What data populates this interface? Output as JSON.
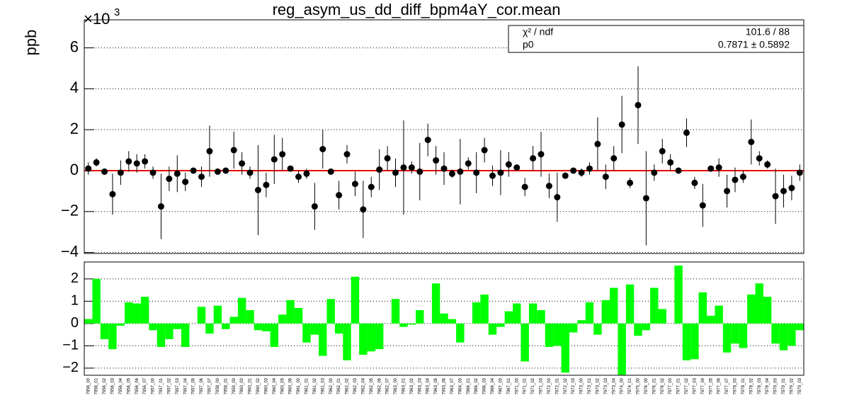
{
  "chart_data": [
    {
      "type": "errorbar",
      "title": "reg_asym_us_dd_diff_bpm4aY_cor.mean",
      "y_label": "ppb",
      "y_scale_label": "×10",
      "y_scale_exponent": "3",
      "color": "#000000",
      "values": [
        100,
        400,
        -50,
        -1150,
        -100,
        450,
        350,
        450,
        -100,
        -1750,
        -400,
        -150,
        -550,
        0,
        -300,
        950,
        -50,
        0,
        1000,
        350,
        -100,
        -950,
        -700,
        550,
        800,
        100,
        -300,
        -150,
        -1750,
        1050,
        -50,
        -1200,
        800,
        -650,
        -1900,
        -800,
        50,
        600,
        -100,
        150,
        150,
        -50,
        1500,
        500,
        100,
        -150,
        -50,
        350,
        -100,
        1000,
        -250,
        -100,
        300,
        150,
        -800,
        600,
        800,
        -750,
        -1300,
        -250,
        0,
        -100,
        100,
        1300,
        -300,
        600,
        2250,
        -600,
        3200,
        -1350,
        -100,
        950,
        400,
        0,
        1850,
        -600,
        -1700,
        100,
        150,
        -1000,
        -450,
        -300,
        1400,
        600,
        300,
        -1250,
        -1000,
        -850,
        -100
      ],
      "errors": [
        300,
        200,
        50,
        1000,
        600,
        500,
        450,
        350,
        300,
        1600,
        600,
        900,
        450,
        100,
        500,
        1250,
        100,
        50,
        900,
        550,
        300,
        2200,
        600,
        1200,
        800,
        100,
        300,
        250,
        1150,
        950,
        100,
        700,
        450,
        600,
        1400,
        500,
        1000,
        600,
        700,
        2300,
        300,
        1400,
        800,
        700,
        800,
        200,
        1600,
        300,
        1000,
        600,
        500,
        1100,
        600,
        100,
        450,
        600,
        1100,
        600,
        1200,
        100,
        50,
        200,
        300,
        1300,
        600,
        600,
        1400,
        250,
        1900,
        2300,
        400,
        600,
        400,
        100,
        700,
        300,
        1050,
        100,
        450,
        800,
        600,
        300,
        1100,
        350,
        200,
        1350,
        800,
        600,
        400
      ],
      "fit": {
        "value": 0.7871,
        "color": "#e00000"
      },
      "stats": [
        {
          "label": "χ² / ndf",
          "value": "101.6 / 88"
        },
        {
          "label": "p0",
          "value": "0.7871 ± 0.5892"
        }
      ],
      "ylim": [
        -4050,
        7300
      ],
      "yticks": [
        {
          "value": -4000,
          "label": "−4"
        },
        {
          "value": -2000,
          "label": "−2"
        },
        {
          "value": 0,
          "label": "0"
        },
        {
          "value": 2000,
          "label": "2"
        },
        {
          "value": 4000,
          "label": "4"
        },
        {
          "value": 6000,
          "label": "6"
        }
      ],
      "grid": true
    },
    {
      "type": "bar",
      "color": "#00ff00",
      "categories": [
        "7956_00",
        "7956_01",
        "7956_02",
        "7956_03",
        "7956_04",
        "7956_05",
        "7956_06",
        "7956_07",
        "7957_00",
        "7957_01",
        "7957_02",
        "7957_03",
        "7957_04",
        "7957_05",
        "7957_06",
        "7957_07",
        "7958_00",
        "7958_01",
        "7959_00",
        "7960_00",
        "7960_01",
        "7960_02",
        "7960_03",
        "7960_04",
        "7960_05",
        "7960_06",
        "7961_00",
        "7961_01",
        "7961_02",
        "7961_03",
        "7962_00",
        "7962_01",
        "7962_02",
        "7962_03",
        "7962_04",
        "7962_05",
        "7962_06",
        "7962_07",
        "7963_00",
        "7963_01",
        "7963_02",
        "7963_03",
        "7963_04",
        "7963_05",
        "7963_06",
        "7963_07",
        "7964_00",
        "7966_01",
        "7966_02",
        "7966_03",
        "7966_04",
        "7967_00",
        "7967_01",
        "7971_00",
        "7971_01",
        "7971_02",
        "7971_03",
        "7972_00",
        "7972_01",
        "7972_02",
        "7972_03",
        "7973_00",
        "7973_01",
        "7973_02",
        "7973_03",
        "7973_04",
        "7974_00",
        "7974_01",
        "7975_00",
        "7976_00",
        "7976_01",
        "7976_02",
        "7977_00",
        "7977_01",
        "7977_02",
        "7977_03",
        "7977_04",
        "7977_05",
        "7977_06",
        "7977_07",
        "7978_00",
        "7978_01",
        "7978_02",
        "7978_03",
        "7978_04",
        "7979_00",
        "7979_01",
        "7979_02",
        "7979_03"
      ],
      "values": [
        0.2,
        2.0,
        -0.7,
        -1.15,
        -0.1,
        0.95,
        0.9,
        1.2,
        -0.3,
        -1.05,
        -0.7,
        -0.25,
        -1.05,
        0.0,
        0.75,
        -0.45,
        0.8,
        -0.25,
        0.3,
        1.15,
        0.6,
        -0.3,
        -0.35,
        -1.05,
        0.4,
        1.05,
        0.7,
        -0.85,
        -0.5,
        -1.45,
        1.1,
        -0.45,
        -1.65,
        2.1,
        -1.4,
        -1.25,
        -1.15,
        0.0,
        1.1,
        -0.15,
        -0.05,
        0.6,
        0.0,
        1.8,
        0.45,
        0.2,
        -0.85,
        0.0,
        0.95,
        1.3,
        -0.5,
        -0.15,
        0.55,
        0.9,
        -1.7,
        0.9,
        0.6,
        -1.05,
        -1.0,
        -2.2,
        -0.4,
        0.15,
        0.95,
        -0.5,
        1.05,
        1.6,
        -2.3,
        1.75,
        -0.55,
        -0.3,
        1.6,
        0.65,
        0.0,
        2.6,
        -1.65,
        -1.6,
        1.4,
        0.35,
        0.8,
        -1.3,
        -0.9,
        -1.1,
        1.3,
        1.8,
        1.2,
        -0.9,
        -1.2,
        -1.0,
        -0.3
      ],
      "ylim": [
        -2.32,
        2.76
      ],
      "yticks": [
        {
          "value": -2,
          "label": "−2"
        },
        {
          "value": -1,
          "label": "−1"
        },
        0,
        1,
        2
      ],
      "grid": true
    }
  ]
}
